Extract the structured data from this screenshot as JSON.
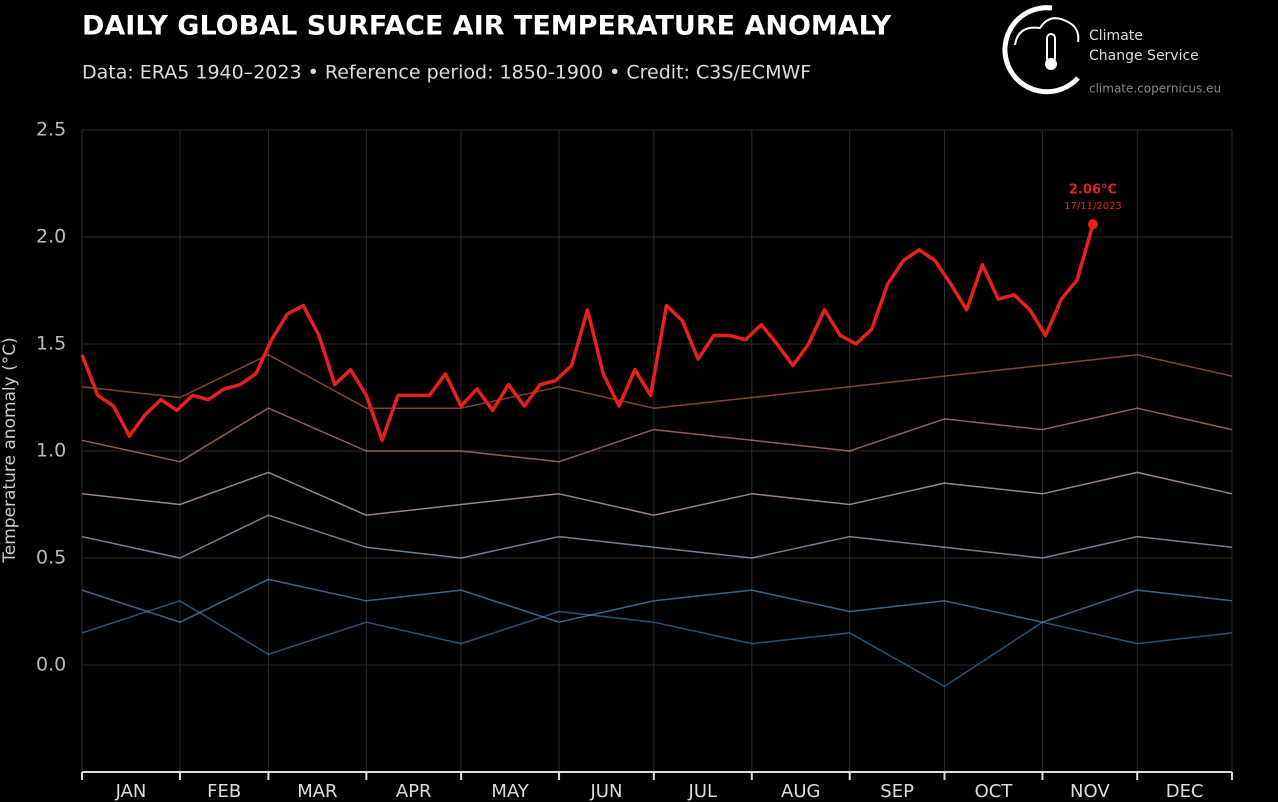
{
  "chart_data": {
    "type": "line",
    "title": "DAILY GLOBAL SURFACE AIR TEMPERATURE ANOMALY",
    "subtitle": "Data: ERA5 1940–2023 • Reference period: 1850-1900 • Credit: C3S/ECMWF",
    "logo": {
      "line1": "Climate",
      "line2": "Change Service",
      "url": "climate.copernicus.eu"
    },
    "ylabel": "Temperature anomaly (°C)",
    "categories": [
      "JAN",
      "FEB",
      "MAR",
      "APR",
      "MAY",
      "JUN",
      "JUL",
      "AUG",
      "SEP",
      "OCT",
      "NOV",
      "DEC"
    ],
    "xlim": [
      1,
      365
    ],
    "xticks": [
      1,
      32,
      60,
      91,
      121,
      152,
      182,
      213,
      244,
      274,
      305,
      335,
      365
    ],
    "ylim": [
      -0.5,
      2.5
    ],
    "yticks": [
      {
        "value": 0,
        "label": "0.0"
      },
      0.5,
      {
        "value": 1,
        "label": "1.0"
      },
      1.5,
      {
        "value": 2,
        "label": "2.0"
      },
      2.5
    ],
    "grid": true,
    "background_series": [
      {
        "color": "#3f74a8",
        "x": [
          1,
          32,
          60,
          91,
          121,
          152,
          182,
          213,
          244,
          274,
          305,
          335,
          365
        ],
        "values": [
          0.15,
          0.3,
          0.05,
          0.2,
          0.1,
          0.25,
          0.2,
          0.1,
          0.15,
          -0.1,
          0.2,
          0.1,
          0.15
        ]
      },
      {
        "color": "#5b8dbd",
        "x": [
          1,
          32,
          60,
          91,
          121,
          152,
          182,
          213,
          244,
          274,
          305,
          335,
          365
        ],
        "values": [
          0.35,
          0.2,
          0.4,
          0.3,
          0.35,
          0.2,
          0.3,
          0.35,
          0.25,
          0.3,
          0.2,
          0.35,
          0.3
        ]
      },
      {
        "color": "#9fb7cf",
        "x": [
          1,
          32,
          60,
          91,
          121,
          152,
          182,
          213,
          244,
          274,
          305,
          335,
          365
        ],
        "values": [
          0.6,
          0.5,
          0.7,
          0.55,
          0.5,
          0.6,
          0.55,
          0.5,
          0.6,
          0.55,
          0.5,
          0.6,
          0.55
        ]
      },
      {
        "color": "#d8c0b5",
        "x": [
          1,
          32,
          60,
          91,
          121,
          152,
          182,
          213,
          244,
          274,
          305,
          335,
          365
        ],
        "values": [
          0.8,
          0.75,
          0.9,
          0.7,
          0.75,
          0.8,
          0.7,
          0.8,
          0.75,
          0.85,
          0.8,
          0.9,
          0.8
        ]
      },
      {
        "color": "#c98a75",
        "x": [
          1,
          32,
          60,
          91,
          121,
          152,
          182,
          213,
          244,
          274,
          305,
          335,
          365
        ],
        "values": [
          1.05,
          0.95,
          1.2,
          1.0,
          1.0,
          0.95,
          1.1,
          1.05,
          1.0,
          1.15,
          1.1,
          1.2,
          1.1
        ]
      },
      {
        "color": "#b8614f",
        "x": [
          1,
          32,
          60,
          91,
          121,
          152,
          182,
          213,
          244,
          274,
          305,
          335,
          365
        ],
        "values": [
          1.3,
          1.25,
          1.45,
          1.2,
          1.2,
          1.3,
          1.2,
          1.25,
          1.3,
          1.35,
          1.4,
          1.45,
          1.35
        ]
      }
    ],
    "series": [
      {
        "color": "#e8201c",
        "x": [
          1,
          6,
          11,
          16,
          21,
          26,
          31,
          36,
          41,
          46,
          51,
          56,
          61,
          66,
          71,
          76,
          81,
          86,
          91,
          96,
          101,
          106,
          111,
          116,
          121,
          126,
          131,
          136,
          141,
          146,
          151,
          156,
          161,
          166,
          171,
          176,
          181,
          186,
          191,
          196,
          201,
          206,
          211,
          216,
          221,
          226,
          231,
          236,
          241,
          246,
          251,
          256,
          261,
          266,
          271,
          276,
          281,
          286,
          291,
          296,
          301,
          306,
          311,
          316,
          321
        ],
        "values": [
          1.45,
          1.26,
          1.21,
          1.07,
          1.17,
          1.24,
          1.19,
          1.26,
          1.24,
          1.29,
          1.31,
          1.36,
          1.52,
          1.64,
          1.68,
          1.54,
          1.31,
          1.38,
          1.26,
          1.05,
          1.26,
          1.26,
          1.26,
          1.36,
          1.21,
          1.29,
          1.19,
          1.31,
          1.21,
          1.31,
          1.33,
          1.4,
          1.66,
          1.36,
          1.21,
          1.38,
          1.26,
          1.68,
          1.61,
          1.43,
          1.54,
          1.54,
          1.52,
          1.59,
          1.5,
          1.4,
          1.5,
          1.66,
          1.54,
          1.5,
          1.57,
          1.78,
          1.89,
          1.94,
          1.89,
          1.78,
          1.66,
          1.87,
          1.71,
          1.73,
          1.66,
          1.54,
          1.71,
          1.8,
          2.06
        ]
      }
    ],
    "annotation": {
      "label": "2.06°C",
      "date": "17/11/2023"
    }
  }
}
